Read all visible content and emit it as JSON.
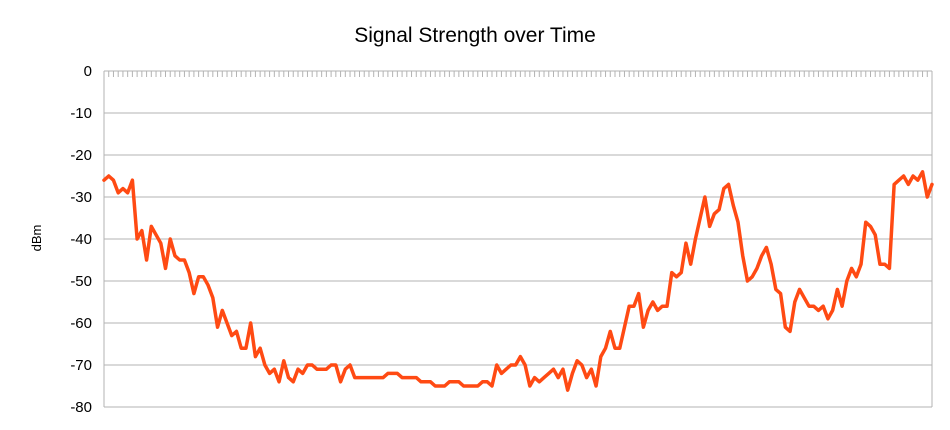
{
  "chart_data": {
    "type": "line",
    "title": "Signal Strength over Time",
    "xlabel": "",
    "ylabel": "dBm",
    "ylim": [
      -80,
      0
    ],
    "yticks": [
      0,
      -10,
      -20,
      -30,
      -40,
      -50,
      -60,
      -70,
      -80
    ],
    "grid": true,
    "legend": "none",
    "series": [
      {
        "color": "#ff4a13",
        "values": [
          -26,
          -25,
          -26,
          -29,
          -28,
          -29,
          -26,
          -40,
          -38,
          -45,
          -37,
          -39,
          -41,
          -47,
          -40,
          -44,
          -45,
          -45,
          -48,
          -53,
          -49,
          -49,
          -51,
          -54,
          -61,
          -57,
          -60,
          -63,
          -62,
          -66,
          -66,
          -60,
          -68,
          -66,
          -70,
          -72,
          -71,
          -74,
          -69,
          -73,
          -74,
          -71,
          -72,
          -70,
          -70,
          -71,
          -71,
          -71,
          -70,
          -70,
          -74,
          -71,
          -70,
          -73,
          -73,
          -73,
          -73,
          -73,
          -73,
          -73,
          -72,
          -72,
          -72,
          -73,
          -73,
          -73,
          -73,
          -74,
          -74,
          -74,
          -75,
          -75,
          -75,
          -74,
          -74,
          -74,
          -75,
          -75,
          -75,
          -75,
          -74,
          -74,
          -75,
          -70,
          -72,
          -71,
          -70,
          -70,
          -68,
          -70,
          -75,
          -73,
          -74,
          -73,
          -72,
          -71,
          -73,
          -71,
          -76,
          -72,
          -69,
          -70,
          -73,
          -71,
          -75,
          -68,
          -66,
          -62,
          -66,
          -66,
          -61,
          -56,
          -56,
          -53,
          -61,
          -57,
          -55,
          -57,
          -56,
          -56,
          -48,
          -49,
          -48,
          -41,
          -46,
          -40,
          -35,
          -30,
          -37,
          -34,
          -33,
          -28,
          -27,
          -32,
          -36,
          -44,
          -50,
          -49,
          -47,
          -44,
          -42,
          -46,
          -52,
          -53,
          -61,
          -62,
          -55,
          -52,
          -54,
          -56,
          -56,
          -57,
          -56,
          -59,
          -57,
          -52,
          -56,
          -50,
          -47,
          -49,
          -46,
          -36,
          -37,
          -39,
          -46,
          -46,
          -47,
          -27,
          -26,
          -25,
          -27,
          -25,
          -26,
          -24,
          -30,
          -27
        ]
      }
    ]
  }
}
